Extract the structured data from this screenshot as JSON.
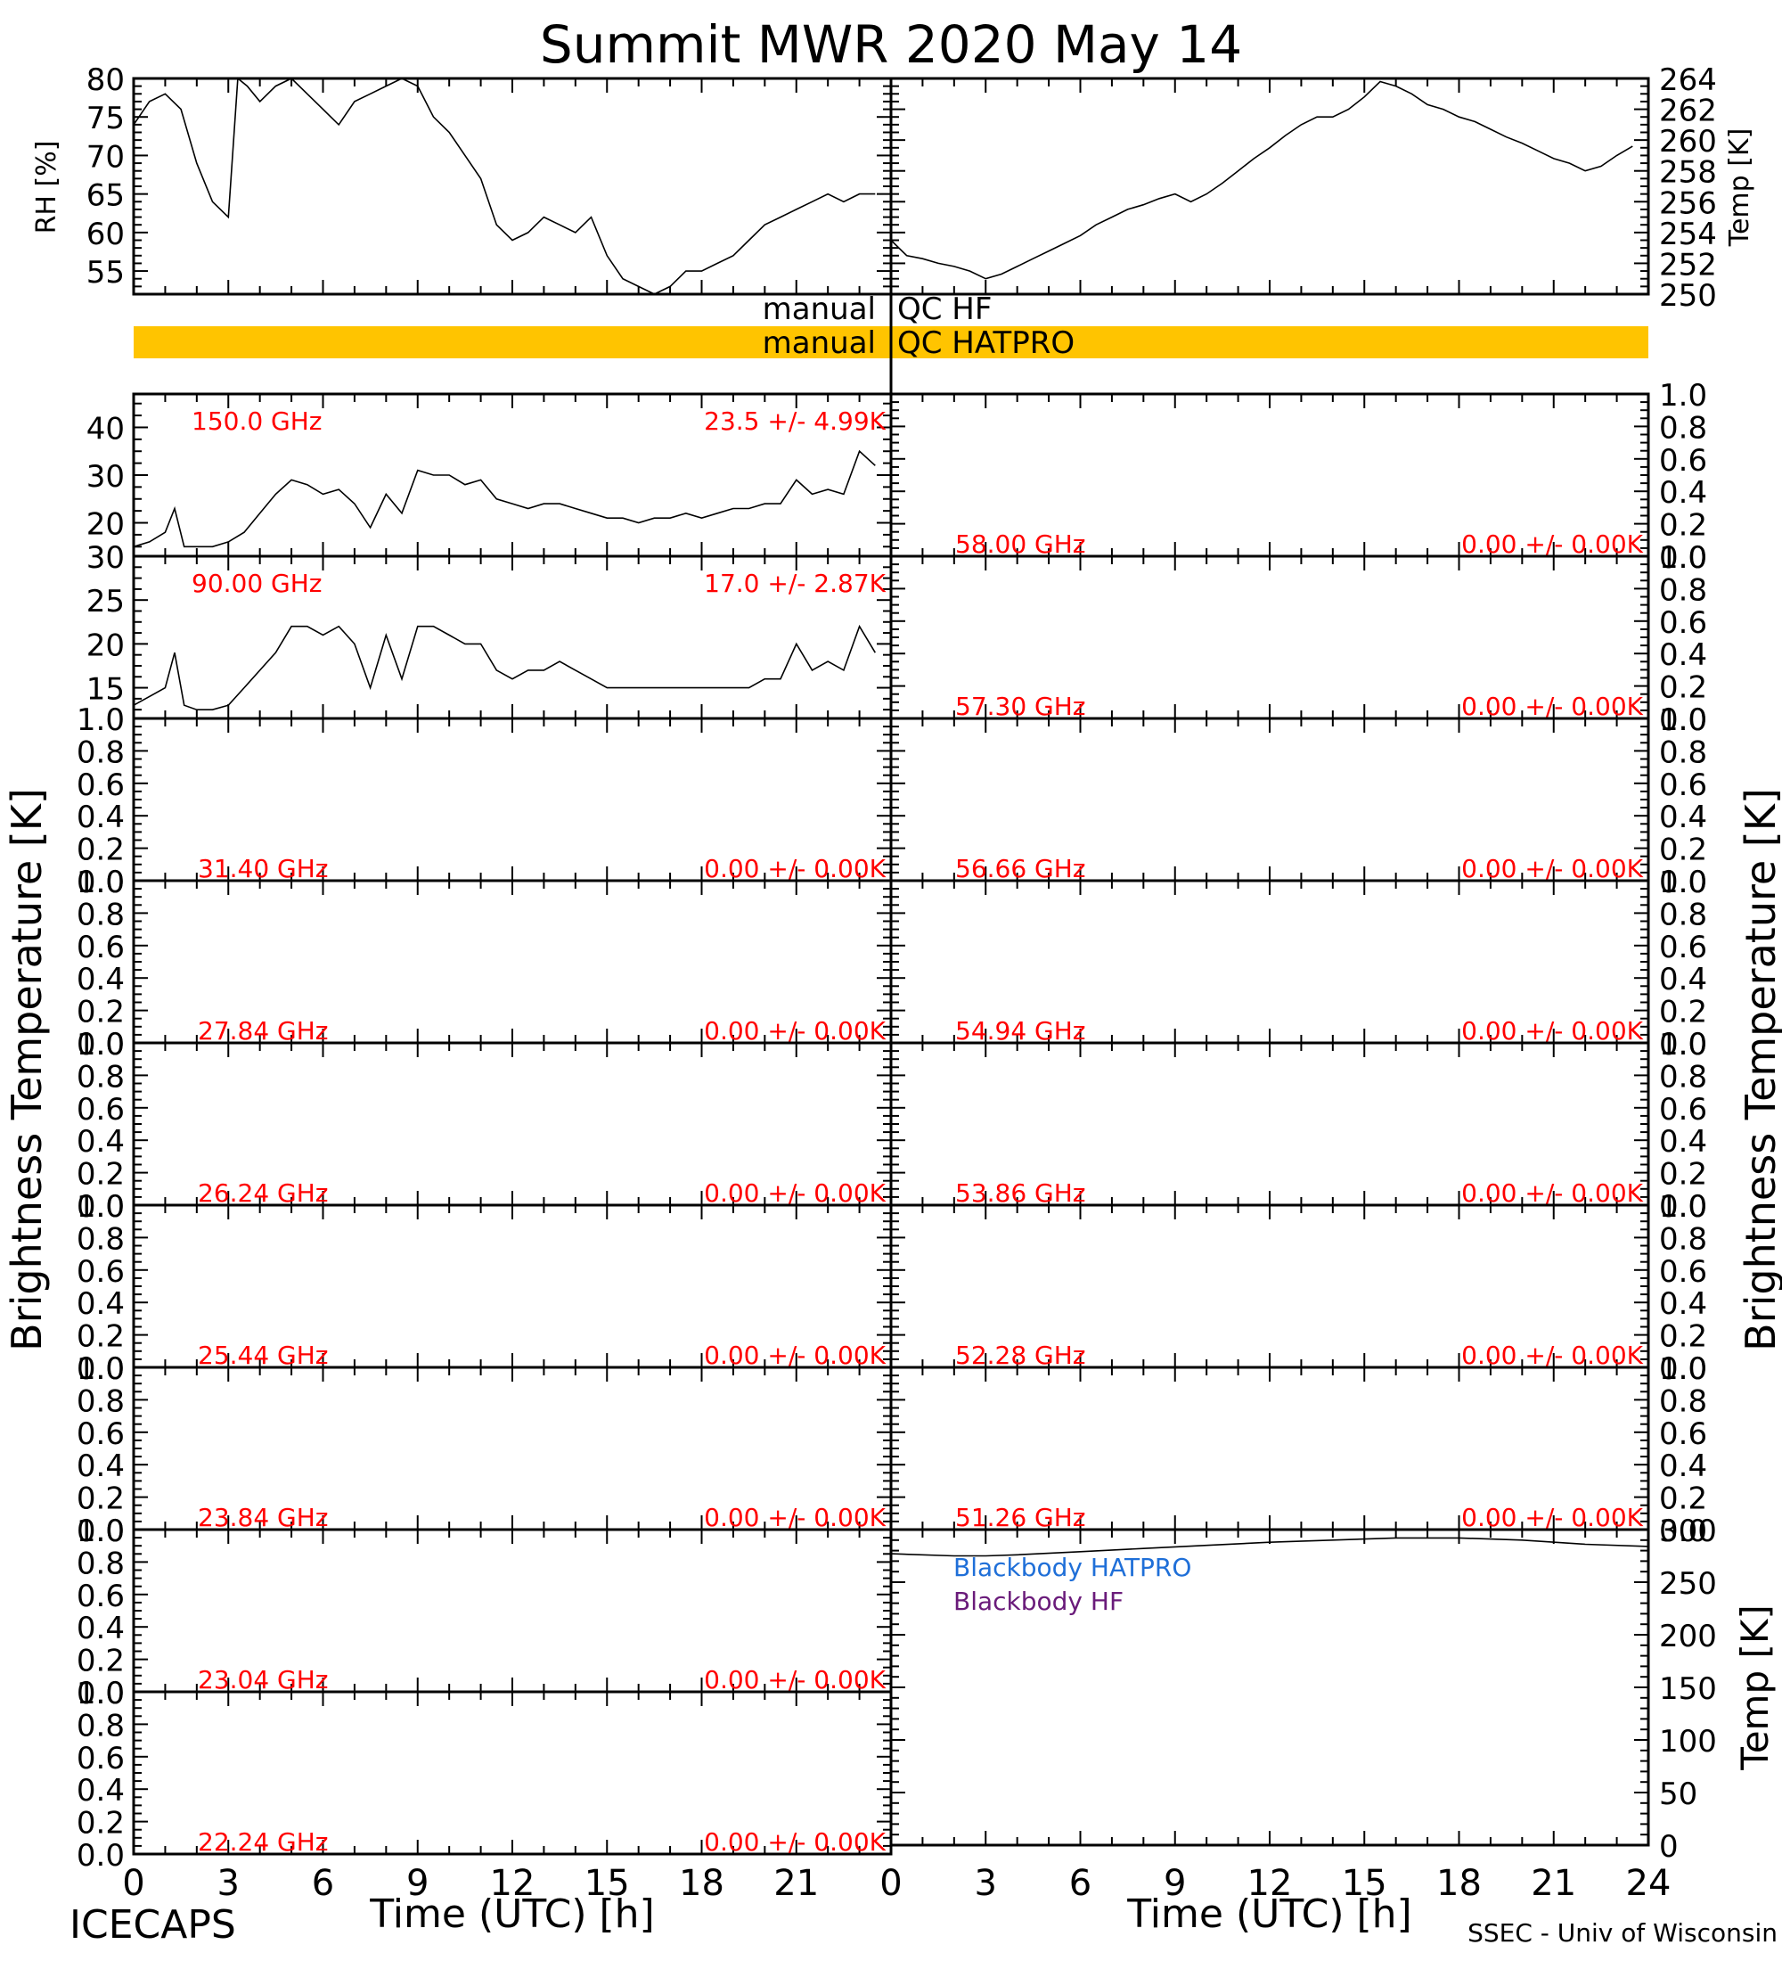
{
  "title": "Summit MWR 2020 May 14",
  "footer_left": "ICECAPS",
  "footer_right": "SSEC - Univ of Wisconsin",
  "colors": {
    "qc_bar": "#ffc400",
    "channel_label": "#ff0000",
    "blackbody_hatpro": "#1f6fd8",
    "blackbody_hf": "#6a1b7a"
  },
  "qc": {
    "hf_label_left": "manual",
    "hf_label_right": "QC HF",
    "hatpro_label_left": "manual",
    "hatpro_label_right": "QC HATPRO",
    "hatpro_flagged": true
  },
  "chart_data": [
    {
      "type": "line",
      "panel": "rh",
      "ylabel": "RH [%]",
      "yticks": [
        "55",
        "60",
        "65",
        "70",
        "75",
        "80"
      ],
      "ylim": [
        52,
        80
      ],
      "xlim": [
        0,
        24
      ],
      "x": [
        0,
        0.5,
        1,
        1.5,
        2,
        2.5,
        3,
        3.3,
        3.6,
        4,
        4.5,
        5,
        5.5,
        6,
        6.5,
        7,
        7.5,
        8,
        8.5,
        9,
        9.5,
        10,
        10.5,
        11,
        11.5,
        12,
        12.5,
        13,
        13.5,
        14,
        14.5,
        15,
        15.5,
        16,
        16.5,
        17,
        17.5,
        18,
        18.5,
        19,
        19.5,
        20,
        20.5,
        21,
        21.5,
        22,
        22.5,
        23,
        23.5
      ],
      "values": [
        74,
        77,
        78,
        76,
        69,
        64,
        62,
        80,
        79,
        77,
        79,
        80,
        78,
        76,
        74,
        77,
        78,
        79,
        80,
        79,
        75,
        73,
        70,
        67,
        61,
        59,
        60,
        62,
        61,
        60,
        62,
        57,
        54,
        53,
        52,
        53,
        55,
        55,
        56,
        57,
        59,
        61,
        62,
        63,
        64,
        65,
        64,
        65,
        65
      ]
    },
    {
      "type": "line",
      "panel": "air_temp",
      "ylabel": "Temp [K]",
      "yticks": [
        "250",
        "252",
        "254",
        "256",
        "258",
        "260",
        "262",
        "264"
      ],
      "ylim": [
        250,
        264
      ],
      "xlim": [
        0,
        24
      ],
      "x": [
        0,
        0.5,
        1,
        1.5,
        2,
        2.5,
        3,
        3.5,
        4,
        4.5,
        5,
        5.5,
        6,
        6.5,
        7,
        7.5,
        8,
        8.5,
        9,
        9.5,
        10,
        10.5,
        11,
        11.5,
        12,
        12.5,
        13,
        13.5,
        14,
        14.5,
        15,
        15.5,
        16,
        16.5,
        17,
        17.5,
        18,
        18.5,
        19,
        19.5,
        20,
        20.5,
        21,
        21.5,
        22,
        22.5,
        23,
        23.5
      ],
      "values": [
        253.5,
        252.5,
        252.3,
        252.0,
        251.8,
        251.5,
        251.0,
        251.3,
        251.8,
        252.3,
        252.8,
        253.3,
        253.8,
        254.5,
        255.0,
        255.5,
        255.8,
        256.2,
        256.5,
        256.0,
        256.5,
        257.2,
        258.0,
        258.8,
        259.5,
        260.3,
        261.0,
        261.5,
        261.5,
        262.0,
        262.8,
        263.8,
        263.5,
        263.0,
        262.3,
        262.0,
        261.5,
        261.2,
        260.7,
        260.2,
        259.8,
        259.3,
        258.8,
        258.5,
        258.0,
        258.3,
        259.0,
        259.6
      ]
    },
    {
      "type": "line",
      "panel": "ch_150",
      "freq_label": "150.0 GHz",
      "stat_label": "23.5 +/-  4.99K",
      "yticks": [
        "20",
        "30",
        "40"
      ],
      "ylim": [
        13,
        47
      ],
      "xlim": [
        0,
        24
      ],
      "x": [
        0,
        0.5,
        1,
        1.3,
        1.6,
        2,
        2.5,
        3,
        3.5,
        4,
        4.5,
        5,
        5.5,
        6,
        6.5,
        7,
        7.5,
        8,
        8.5,
        9,
        9.5,
        10,
        10.5,
        11,
        11.5,
        12,
        12.5,
        13,
        13.5,
        14,
        14.5,
        15,
        15.5,
        16,
        16.5,
        17,
        17.5,
        18,
        18.5,
        19,
        19.5,
        20,
        20.5,
        21,
        21.5,
        22,
        22.5,
        23,
        23.5
      ],
      "values": [
        15,
        16,
        18,
        23,
        15,
        15,
        15,
        16,
        18,
        22,
        26,
        29,
        28,
        26,
        27,
        24,
        19,
        26,
        22,
        31,
        30,
        30,
        28,
        29,
        25,
        24,
        23,
        24,
        24,
        23,
        22,
        21,
        21,
        20,
        21,
        21,
        22,
        21,
        22,
        23,
        23,
        24,
        24,
        29,
        26,
        27,
        26,
        35,
        32
      ]
    },
    {
      "type": "line",
      "panel": "ch_90",
      "freq_label": "90.00 GHz",
      "stat_label": "17.0 +/-  2.87K",
      "yticks": [
        "15",
        "20",
        "25",
        "30"
      ],
      "ylim": [
        11.5,
        30
      ],
      "xlim": [
        0,
        24
      ],
      "x": [
        0,
        0.5,
        1,
        1.3,
        1.6,
        2,
        2.5,
        3,
        3.5,
        4,
        4.5,
        5,
        5.5,
        6,
        6.5,
        7,
        7.5,
        8,
        8.5,
        9,
        9.5,
        10,
        10.5,
        11,
        11.5,
        12,
        12.5,
        13,
        13.5,
        14,
        14.5,
        15,
        15.5,
        16,
        16.5,
        17,
        17.5,
        18,
        18.5,
        19,
        19.5,
        20,
        20.5,
        21,
        21.5,
        22,
        22.5,
        23,
        23.5
      ],
      "values": [
        13,
        14,
        15,
        19,
        13,
        12.5,
        12.5,
        13,
        15,
        17,
        19,
        22,
        22,
        21,
        22,
        20,
        15,
        21,
        16,
        22,
        22,
        21,
        20,
        20,
        17,
        16,
        17,
        17,
        18,
        17,
        16,
        15,
        15,
        15,
        15,
        15,
        15,
        15,
        15,
        15,
        15,
        16,
        16,
        20,
        17,
        18,
        17,
        22,
        19
      ]
    },
    {
      "type": "line",
      "panel": "ch_58.00",
      "freq_label": "58.00 GHz",
      "stat_label": "0.00 +/-  0.00K",
      "yticks": [
        "0.0",
        "0.2",
        "0.4",
        "0.6",
        "0.8",
        "1.0"
      ],
      "ylim": [
        0,
        1
      ],
      "values": []
    },
    {
      "type": "line",
      "panel": "ch_57.30",
      "freq_label": "57.30 GHz",
      "stat_label": "0.00 +/-  0.00K",
      "yticks": [
        "0.0",
        "0.2",
        "0.4",
        "0.6",
        "0.8",
        "1.0"
      ],
      "ylim": [
        0,
        1
      ],
      "values": []
    },
    {
      "type": "line",
      "panel": "ch_31.40",
      "freq_label": "31.40 GHz",
      "stat_label": "0.00 +/-  0.00K",
      "yticks": [
        "0.0",
        "0.2",
        "0.4",
        "0.6",
        "0.8",
        "1.0"
      ],
      "ylim": [
        0,
        1
      ],
      "values": []
    },
    {
      "type": "line",
      "panel": "ch_56.66",
      "freq_label": "56.66 GHz",
      "stat_label": "0.00 +/-  0.00K",
      "yticks": [
        "0.0",
        "0.2",
        "0.4",
        "0.6",
        "0.8",
        "1.0"
      ],
      "ylim": [
        0,
        1
      ],
      "values": []
    },
    {
      "type": "line",
      "panel": "ch_27.84",
      "freq_label": "27.84 GHz",
      "stat_label": "0.00 +/-  0.00K",
      "yticks": [
        "0.0",
        "0.2",
        "0.4",
        "0.6",
        "0.8",
        "1.0"
      ],
      "ylim": [
        0,
        1
      ],
      "values": []
    },
    {
      "type": "line",
      "panel": "ch_54.94",
      "freq_label": "54.94 GHz",
      "stat_label": "0.00 +/-  0.00K",
      "yticks": [
        "0.0",
        "0.2",
        "0.4",
        "0.6",
        "0.8",
        "1.0"
      ],
      "ylim": [
        0,
        1
      ],
      "values": []
    },
    {
      "type": "line",
      "panel": "ch_26.24",
      "freq_label": "26.24 GHz",
      "stat_label": "0.00 +/-  0.00K",
      "yticks": [
        "0.0",
        "0.2",
        "0.4",
        "0.6",
        "0.8",
        "1.0"
      ],
      "ylim": [
        0,
        1
      ],
      "values": []
    },
    {
      "type": "line",
      "panel": "ch_53.86",
      "freq_label": "53.86 GHz",
      "stat_label": "0.00 +/-  0.00K",
      "yticks": [
        "0.0",
        "0.2",
        "0.4",
        "0.6",
        "0.8",
        "1.0"
      ],
      "ylim": [
        0,
        1
      ],
      "values": []
    },
    {
      "type": "line",
      "panel": "ch_25.44",
      "freq_label": "25.44 GHz",
      "stat_label": "0.00 +/-  0.00K",
      "yticks": [
        "0.0",
        "0.2",
        "0.4",
        "0.6",
        "0.8",
        "1.0"
      ],
      "ylim": [
        0,
        1
      ],
      "values": []
    },
    {
      "type": "line",
      "panel": "ch_52.28",
      "freq_label": "52.28 GHz",
      "stat_label": "0.00 +/-  0.00K",
      "yticks": [
        "0.0",
        "0.2",
        "0.4",
        "0.6",
        "0.8",
        "1.0"
      ],
      "ylim": [
        0,
        1
      ],
      "values": []
    },
    {
      "type": "line",
      "panel": "ch_23.84",
      "freq_label": "23.84 GHz",
      "stat_label": "0.00 +/-  0.00K",
      "yticks": [
        "0.0",
        "0.2",
        "0.4",
        "0.6",
        "0.8",
        "1.0"
      ],
      "ylim": [
        0,
        1
      ],
      "values": []
    },
    {
      "type": "line",
      "panel": "ch_51.26",
      "freq_label": "51.26 GHz",
      "stat_label": "0.00 +/-  0.00K",
      "yticks": [
        "0.0",
        "0.2",
        "0.4",
        "0.6",
        "0.8",
        "1.0"
      ],
      "ylim": [
        0,
        1
      ],
      "values": []
    },
    {
      "type": "line",
      "panel": "ch_23.04",
      "freq_label": "23.04 GHz",
      "stat_label": "0.00 +/-  0.00K",
      "yticks": [
        "0.0",
        "0.2",
        "0.4",
        "0.6",
        "0.8",
        "1.0"
      ],
      "ylim": [
        0,
        1
      ],
      "values": []
    },
    {
      "type": "line",
      "panel": "ch_22.24",
      "freq_label": "22.24 GHz",
      "stat_label": "0.00 +/-  0.00K",
      "yticks": [
        "0.0",
        "0.2",
        "0.4",
        "0.6",
        "0.8",
        "1.0"
      ],
      "ylim": [
        0,
        1
      ],
      "values": []
    },
    {
      "type": "line",
      "panel": "blackbody",
      "ylabel": "Temp [K]",
      "yticks": [
        "0",
        "50",
        "100",
        "150",
        "200",
        "250",
        "300"
      ],
      "ylim": [
        0,
        300
      ],
      "xlim": [
        0,
        24
      ],
      "x": [
        0,
        2,
        3,
        4,
        6,
        8,
        10,
        12,
        14,
        16,
        17,
        18,
        20,
        22,
        24
      ],
      "series": [
        {
          "name": "Blackbody HATPRO",
          "values": [
            0,
            0,
            0,
            0,
            0,
            0,
            0,
            0,
            0,
            0,
            0,
            0,
            0,
            0,
            0
          ]
        },
        {
          "name": "Blackbody HF",
          "values": [
            277,
            275,
            275,
            276,
            279,
            282,
            285,
            288,
            290,
            292,
            292,
            292,
            290,
            286,
            284
          ]
        }
      ]
    }
  ],
  "axes": {
    "left_ylabel": "Brightness Temperature [K]",
    "right_ylabel": "Brightness Temperature [K]",
    "xlabel": "Time (UTC) [h]",
    "xticks_left": [
      "0",
      "3",
      "6",
      "9",
      "12",
      "15",
      "18",
      "21"
    ],
    "xticks_right": [
      "0",
      "3",
      "6",
      "9",
      "12",
      "15",
      "18",
      "21",
      "24"
    ]
  }
}
